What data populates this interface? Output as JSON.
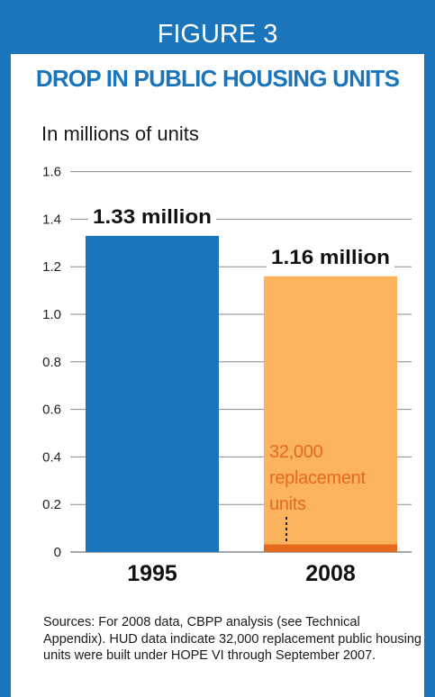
{
  "header": {
    "figure_label": "FIGURE 3",
    "title": "DROP IN PUBLIC HOUSING UNITS"
  },
  "colors": {
    "frame": "#1b75bb",
    "bar_1995": "#1b75bb",
    "bar_2008": "#fbb35e",
    "replacement": "#e46a1e",
    "annotation_text": "#e46a1e",
    "gridline": "#8a8a8a"
  },
  "chart_data": {
    "type": "bar",
    "ylabel": "In millions of units",
    "ylim": [
      0,
      1.6
    ],
    "yticks": [
      {
        "value": 0,
        "label": "0"
      },
      {
        "value": 0.2,
        "label": "0.2"
      },
      {
        "value": 0.4,
        "label": "0.4"
      },
      {
        "value": 0.6,
        "label": "0.6"
      },
      {
        "value": 0.8,
        "label": "0.8"
      },
      {
        "value": 1.0,
        "label": "1.0"
      },
      {
        "value": 1.2,
        "label": "1.2"
      },
      {
        "value": 1.4,
        "label": "1.4"
      },
      {
        "value": 1.6,
        "label": "1.6"
      }
    ],
    "grid": true,
    "categories": [
      "1995",
      "2008"
    ],
    "values": [
      1.33,
      1.16
    ],
    "data_labels": [
      "1.33 million",
      "1.16 million"
    ],
    "segment": {
      "category": "2008",
      "value": 0.032
    },
    "annotation": {
      "category": "2008",
      "lines": [
        "32,000",
        "replacement",
        "units"
      ]
    }
  },
  "source_note": "Sources: For 2008 data, CBPP analysis (see Technical Appendix).  HUD data indicate 32,000 replacement public housing units were built under HOPE VI through September 2007."
}
